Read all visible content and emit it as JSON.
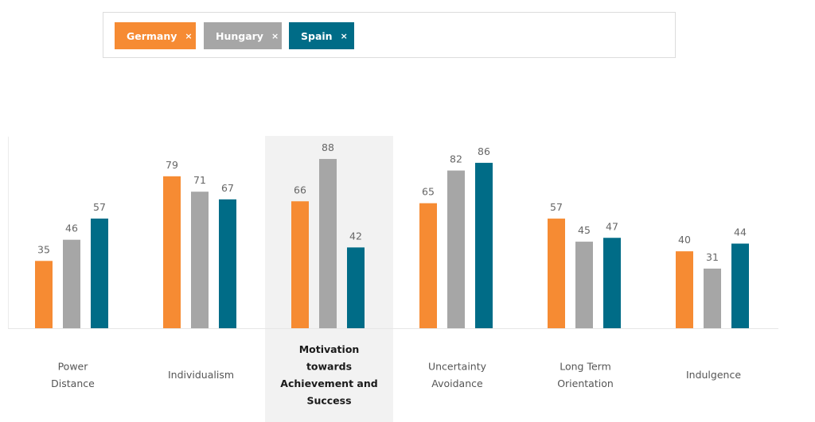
{
  "filters": [
    {
      "label": "Germany",
      "remove_icon": "×",
      "color": "#F68B33"
    },
    {
      "label": "Hungary",
      "remove_icon": "×",
      "color": "#A6A6A6"
    },
    {
      "label": "Spain",
      "remove_icon": "×",
      "color": "#006C87"
    }
  ],
  "chart_data": {
    "type": "bar",
    "categories": [
      [
        "Power",
        "Distance"
      ],
      [
        "Individualism"
      ],
      [
        "Motivation",
        "towards",
        "Achievement and",
        "Success"
      ],
      [
        "Uncertainty",
        "Avoidance"
      ],
      [
        "Long Term",
        "Orientation"
      ],
      [
        "Indulgence"
      ]
    ],
    "highlighted_category": 2,
    "series": [
      {
        "name": "Germany",
        "color": "#F68B33",
        "values": [
          35,
          79,
          66,
          65,
          57,
          40
        ]
      },
      {
        "name": "Hungary",
        "color": "#A6A6A6",
        "values": [
          46,
          71,
          88,
          82,
          45,
          31
        ]
      },
      {
        "name": "Spain",
        "color": "#006C87",
        "values": [
          57,
          67,
          42,
          86,
          47,
          44
        ]
      }
    ],
    "ylim": [
      0,
      100
    ],
    "grid": false,
    "legend": "top"
  }
}
